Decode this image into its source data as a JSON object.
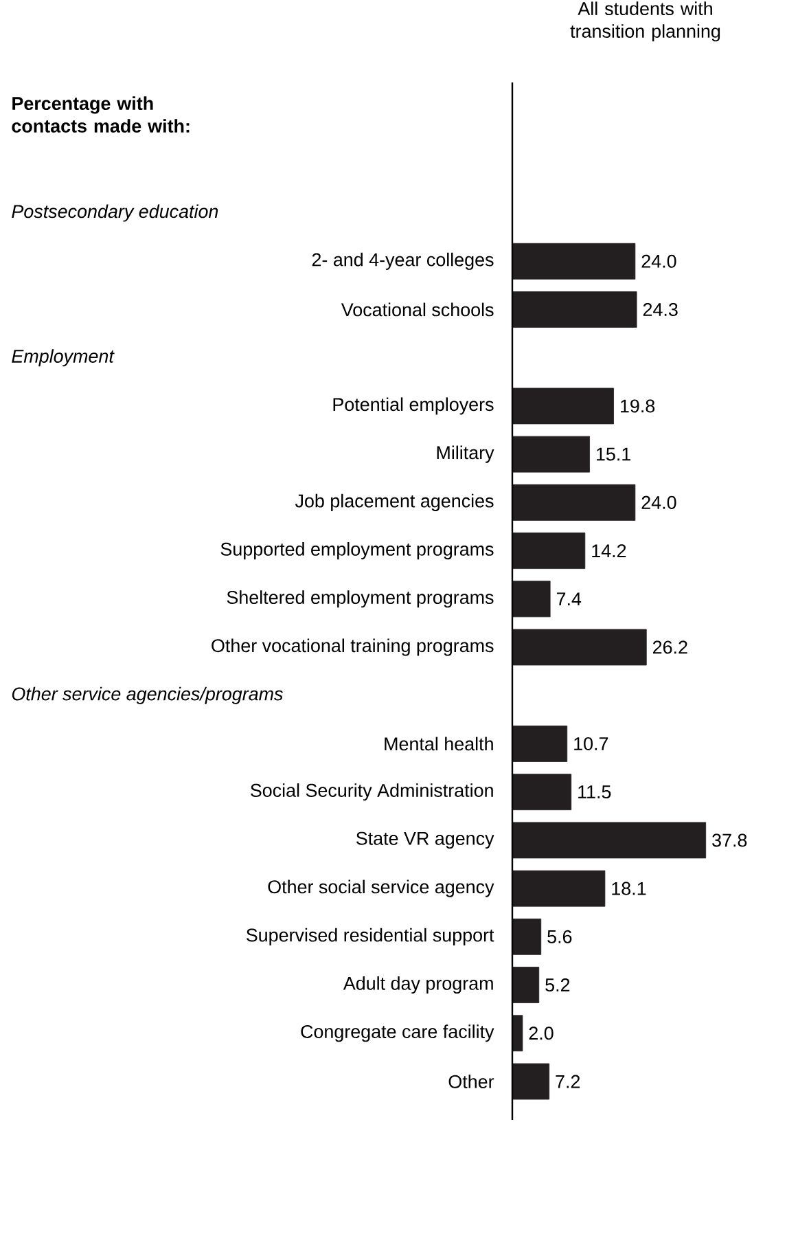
{
  "chart_data": {
    "type": "bar",
    "orientation": "horizontal",
    "title": "Percentage with contacts made with:",
    "categories": [
      null,
      "2- and 4-year colleges",
      "Vocational schools",
      null,
      "Potential employers",
      "Military",
      "Job placement agencies",
      "Supported employment programs",
      "Sheltered employment programs",
      "Other vocational training programs",
      null,
      "Mental health",
      "Social Security Administration",
      "State VR agency",
      "Other social service agency",
      "Supervised residential support",
      "Adult day program",
      "Congregate care facility",
      "Other"
    ],
    "annotations": [
      "Postsecondary education",
      "Employment",
      "Other service agencies/programs"
    ],
    "series": [
      {
        "name": "All students with transition planning",
        "color": "#231f20",
        "values": [
          null,
          24.0,
          24.3,
          null,
          19.8,
          15.1,
          24.0,
          14.2,
          7.4,
          26.2,
          null,
          10.7,
          11.5,
          37.8,
          18.1,
          5.6,
          5.2,
          2.0,
          7.2
        ],
        "value_labels": [
          null,
          "24.0",
          "24.3",
          null,
          "19.8",
          "15.1",
          "24.0",
          "14.2",
          "7.4",
          "26.2",
          null,
          "10.7",
          "11.5",
          "37.8",
          "18.1",
          "5.6",
          "5.2",
          "2.0",
          "7.2"
        ]
      }
    ]
  }
}
